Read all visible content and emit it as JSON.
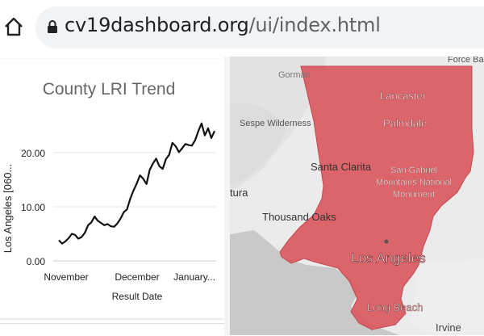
{
  "browser": {
    "url_domain": "cv19dashboard.org",
    "url_path": "/ui/index.html"
  },
  "chart_data": {
    "type": "line",
    "title": "County LRI Trend",
    "ylabel": "Los Angeles [060...",
    "xlabel": "Result Date",
    "ylim": [
      0,
      26
    ],
    "yticks": [
      "0.00",
      "10.00",
      "20.00"
    ],
    "x_tick_labels": [
      "November",
      "December",
      "January..."
    ],
    "series": [
      {
        "color": "#111111",
        "values": [
          3.8,
          3.2,
          3.6,
          4.2,
          5.0,
          4.8,
          4.1,
          4.4,
          5.2,
          6.6,
          7.1,
          8.2,
          7.4,
          7.0,
          6.6,
          6.8,
          6.4,
          6.3,
          6.9,
          7.8,
          9.0,
          9.5,
          11.5,
          13.0,
          14.3,
          15.8,
          15.2,
          14.2,
          16.8,
          18.0,
          18.9,
          17.5,
          17.0,
          18.8,
          19.6,
          21.8,
          21.2,
          20.1,
          20.8,
          21.6,
          21.4,
          21.3,
          22.3,
          24.0,
          25.4,
          23.2,
          24.5,
          22.7,
          24.0
        ]
      }
    ]
  },
  "map": {
    "labels": {
      "force_base": "Force Base",
      "gorman": "Gorman",
      "sespe": "Sespe Wilderness",
      "lancaster": "Lancaster",
      "palmdale": "Palmdale",
      "santa_clarita": "Santa Clarita",
      "san_gabriel_1": "San Gabriel",
      "san_gabriel_2": "Mountains National",
      "san_gabriel_3": "Monument",
      "ventura": "tura",
      "thousand_oaks": "Thousand Oaks",
      "los_angeles": "Los Angeles",
      "long_beach": "Long Beach",
      "irvine": "Irvine"
    },
    "county_color": "#d9595e"
  }
}
